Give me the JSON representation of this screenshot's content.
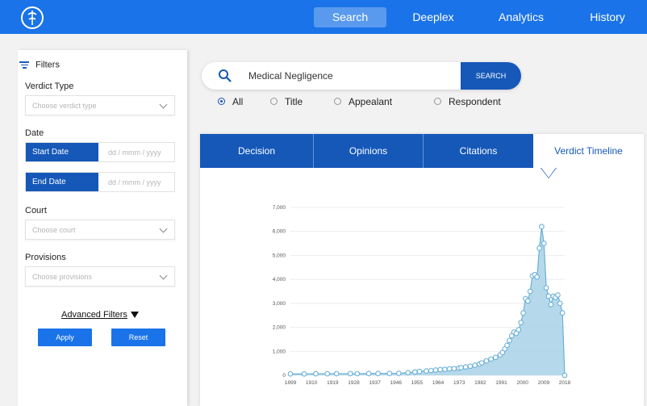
{
  "nav": {
    "items": [
      "Search",
      "Deeplex",
      "Analytics",
      "History"
    ],
    "active": 0
  },
  "filters": {
    "title": "Filters",
    "verdict_type_label": "Verdict Type",
    "verdict_type_placeholder": "Choose verdict type",
    "date_label": "Date",
    "start_date_label": "Start Date",
    "end_date_label": "End Date",
    "date_placeholder": "dd / mmm / yyyy",
    "court_label": "Court",
    "court_placeholder": "Choose court",
    "provisions_label": "Provisions",
    "provisions_placeholder": "Choose provisions",
    "advanced_label": "Advanced Filters",
    "apply_label": "Apply",
    "reset_label": "Reset"
  },
  "search": {
    "value": "Medical Negligence",
    "button_label": "SEARCH",
    "scopes": [
      "All",
      "Title",
      "Appealant",
      "Respondent"
    ],
    "selected_scope": 0
  },
  "tabs": [
    "Decision",
    "Opinions",
    "Citations",
    "Verdict Timeline"
  ],
  "active_tab": 3,
  "colors": {
    "primary": "#1a73e8",
    "dark_primary": "#1558b8",
    "area_fill": "#a8d2e8",
    "line": "#6ab0d8"
  },
  "chart_data": {
    "type": "area",
    "x_tick_labels": [
      "1899",
      "1910",
      "1919",
      "1928",
      "1937",
      "1946",
      "1955",
      "1964",
      "1973",
      "1982",
      "1991",
      "2000",
      "2009",
      "2018"
    ],
    "y_tick_labels": [
      "0",
      "1,000",
      "2,000",
      "3,000",
      "4,000",
      "5,000",
      "6,000",
      "7,000"
    ],
    "ylim": [
      0,
      7000
    ],
    "xlim": [
      1899,
      2018
    ],
    "grid": true,
    "x": [
      1899,
      1905,
      1910,
      1915,
      1919,
      1925,
      1928,
      1933,
      1937,
      1942,
      1946,
      1950,
      1953,
      1955,
      1958,
      1960,
      1962,
      1964,
      1966,
      1968,
      1970,
      1972,
      1973,
      1975,
      1977,
      1979,
      1981,
      1982,
      1984,
      1986,
      1988,
      1990,
      1991,
      1992,
      1993,
      1994,
      1995,
      1996,
      1997,
      1998,
      1999,
      2000,
      2001,
      2002,
      2003,
      2004,
      2005,
      2006,
      2007,
      2008,
      2009,
      2010,
      2011,
      2012,
      2013,
      2014,
      2015,
      2016,
      2017,
      2018
    ],
    "y": [
      60,
      60,
      65,
      65,
      70,
      70,
      70,
      75,
      75,
      80,
      85,
      110,
      140,
      160,
      180,
      200,
      220,
      240,
      250,
      270,
      280,
      300,
      320,
      350,
      380,
      420,
      470,
      520,
      600,
      680,
      750,
      850,
      950,
      1100,
      1250,
      1450,
      1650,
      1800,
      1750,
      1900,
      2200,
      2600,
      3200,
      3100,
      3500,
      4150,
      4200,
      4100,
      5300,
      6200,
      5500,
      3650,
      3300,
      2950,
      3300,
      3250,
      3350,
      3000,
      2600,
      0
    ]
  }
}
